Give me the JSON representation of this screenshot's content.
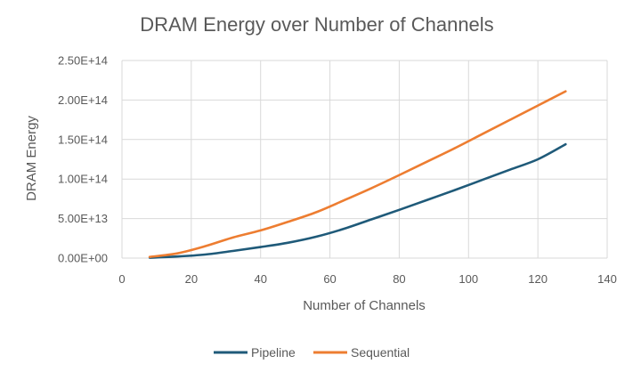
{
  "chart_data": {
    "type": "line",
    "title": "DRAM Energy over Number of Channels",
    "xlabel": "Number of Channels",
    "ylabel": "DRAM Energy",
    "xlim": [
      0,
      140
    ],
    "ylim": [
      0,
      250000000000000.0
    ],
    "xticks": [
      0,
      20,
      40,
      60,
      80,
      100,
      120,
      140
    ],
    "xtick_labels": [
      "0",
      "20",
      "40",
      "60",
      "80",
      "100",
      "120",
      "140"
    ],
    "yticks": [
      0,
      50000000000000.0,
      100000000000000.0,
      150000000000000.0,
      200000000000000.0,
      250000000000000.0
    ],
    "ytick_labels": [
      "0.00E+00",
      "5.00E+13",
      "1.00E+14",
      "1.50E+14",
      "2.00E+14",
      "2.50E+14"
    ],
    "grid": true,
    "legend_position": "bottom",
    "series": [
      {
        "name": "Pipeline",
        "color": "#1f5a79",
        "x": [
          8,
          16,
          24,
          32,
          40,
          48,
          56,
          64,
          72,
          80,
          88,
          96,
          104,
          112,
          120,
          128
        ],
        "y": [
          500000000000.0,
          2000000000000.0,
          4500000000000.0,
          9000000000000.0,
          14000000000000.0,
          19500000000000.0,
          27000000000000.0,
          37000000000000.0,
          49000000000000.0,
          61000000000000.0,
          73500000000000.0,
          86000000000000.0,
          99000000000000.0,
          112000000000000.0,
          125000000000000.0,
          144000000000000.0
        ]
      },
      {
        "name": "Sequential",
        "color": "#ed7d31",
        "x": [
          8,
          16,
          24,
          32,
          40,
          48,
          56,
          64,
          72,
          80,
          88,
          96,
          104,
          112,
          120,
          128
        ],
        "y": [
          1500000000000.0,
          6000000000000.0,
          15000000000000.0,
          26000000000000.0,
          35000000000000.0,
          46000000000000.0,
          58000000000000.0,
          73000000000000.0,
          88500000000000.0,
          105000000000000.0,
          122000000000000.0,
          139000000000000.0,
          157000000000000.0,
          175000000000000.0,
          193000000000000.0,
          211000000000000.0
        ]
      }
    ]
  }
}
